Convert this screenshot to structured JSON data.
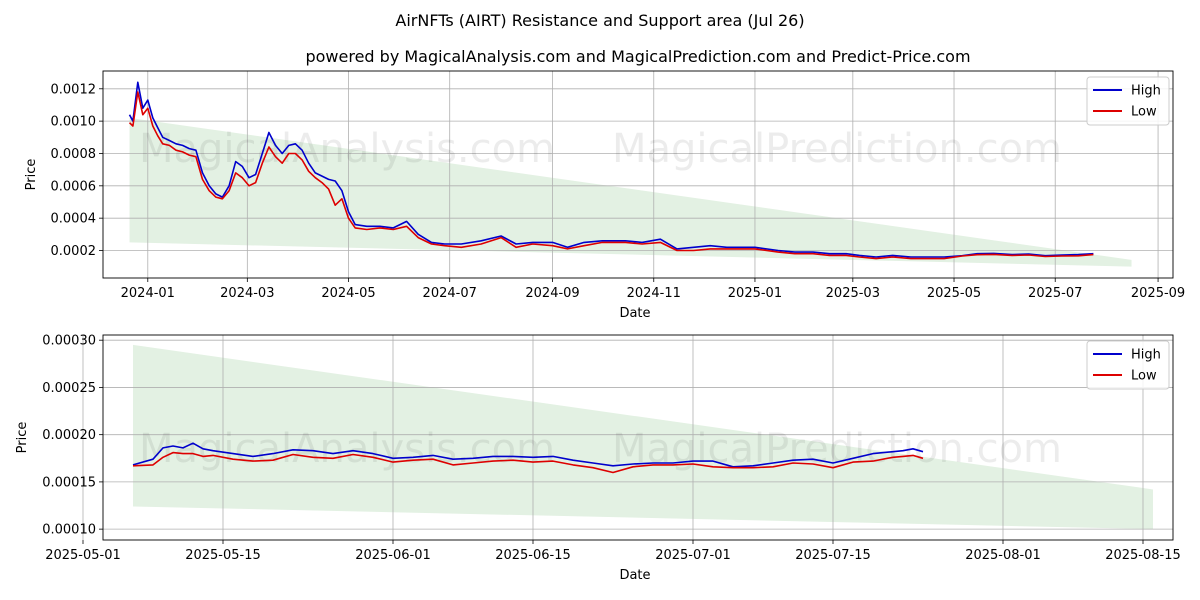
{
  "title": "AirNFTs (AIRT) Resistance and Support area (Jul 26)",
  "subtitle": "powered by MagicalAnalysis.com and MagicalPrediction.com and Predict-Price.com",
  "watermarks": [
    "MagicalAnalysis.com",
    "MagicalPrediction.com"
  ],
  "colors": {
    "high": "#0000cc",
    "low": "#dd0000",
    "band": "#e3f1e3",
    "grid": "#b0b0b0"
  },
  "chart_data": [
    {
      "type": "line",
      "xlabel": "Date",
      "ylabel": "Price",
      "grid": true,
      "legend": "top-right",
      "xlim": [
        "2023-12-05",
        "2025-09-10"
      ],
      "ylim": [
        3e-05,
        0.00131
      ],
      "xticks": [
        "2024-01",
        "2024-03",
        "2024-05",
        "2024-07",
        "2024-09",
        "2024-11",
        "2025-01",
        "2025-03",
        "2025-05",
        "2025-07",
        "2025-09"
      ],
      "xtick_labels": [
        "2024-01",
        "2024-03",
        "2024-05",
        "2024-07",
        "2024-09",
        "2024-11",
        "2025-01",
        "2025-03",
        "2025-05",
        "2025-07",
        "2025-09"
      ],
      "yticks": [
        0.0002,
        0.0004,
        0.0006,
        0.0008,
        0.001,
        0.0012
      ],
      "ytick_labels": [
        "0.0002",
        "0.0004",
        "0.0006",
        "0.0008",
        "0.0010",
        "0.0012"
      ],
      "band": {
        "x": [
          "2023-12-21",
          "2025-08-16"
        ],
        "upper": [
          0.00102,
          0.000142
        ],
        "lower": [
          0.00025,
          0.0001
        ]
      },
      "series": [
        {
          "name": "High",
          "x": [
            "2023-12-21",
            "2023-12-23",
            "2023-12-26",
            "2023-12-29",
            "2024-01-01",
            "2024-01-04",
            "2024-01-07",
            "2024-01-10",
            "2024-01-14",
            "2024-01-18",
            "2024-01-22",
            "2024-01-26",
            "2024-01-30",
            "2024-02-03",
            "2024-02-07",
            "2024-02-11",
            "2024-02-15",
            "2024-02-19",
            "2024-02-23",
            "2024-02-27",
            "2024-03-02",
            "2024-03-06",
            "2024-03-10",
            "2024-03-14",
            "2024-03-18",
            "2024-03-22",
            "2024-03-26",
            "2024-03-30",
            "2024-04-03",
            "2024-04-07",
            "2024-04-11",
            "2024-04-15",
            "2024-04-19",
            "2024-04-23",
            "2024-04-27",
            "2024-05-01",
            "2024-05-05",
            "2024-05-12",
            "2024-05-20",
            "2024-05-28",
            "2024-06-05",
            "2024-06-12",
            "2024-06-20",
            "2024-06-28",
            "2024-07-08",
            "2024-07-20",
            "2024-08-01",
            "2024-08-10",
            "2024-08-20",
            "2024-09-01",
            "2024-09-10",
            "2024-09-20",
            "2024-10-01",
            "2024-10-15",
            "2024-10-25",
            "2024-11-05",
            "2024-11-15",
            "2024-11-25",
            "2024-12-05",
            "2024-12-15",
            "2025-01-01",
            "2025-01-15",
            "2025-01-25",
            "2025-02-05",
            "2025-02-15",
            "2025-02-25",
            "2025-03-05",
            "2025-03-15",
            "2025-03-25",
            "2025-04-05",
            "2025-04-15",
            "2025-04-25",
            "2025-05-06",
            "2025-05-15",
            "2025-05-25",
            "2025-06-05",
            "2025-06-15",
            "2025-06-25",
            "2025-07-05",
            "2025-07-15",
            "2025-07-24"
          ],
          "values": [
            0.00104,
            0.001,
            0.00124,
            0.00108,
            0.00113,
            0.00102,
            0.00096,
            0.0009,
            0.00088,
            0.00086,
            0.00085,
            0.00083,
            0.00082,
            0.00068,
            0.0006,
            0.00055,
            0.00053,
            0.0006,
            0.00075,
            0.00072,
            0.00065,
            0.00067,
            0.0008,
            0.00093,
            0.00085,
            0.0008,
            0.00085,
            0.00086,
            0.00082,
            0.00074,
            0.00068,
            0.00066,
            0.00064,
            0.00063,
            0.00057,
            0.00044,
            0.00036,
            0.00035,
            0.00035,
            0.00034,
            0.00038,
            0.0003,
            0.00025,
            0.00024,
            0.00024,
            0.00026,
            0.00029,
            0.00024,
            0.00025,
            0.00025,
            0.00022,
            0.00025,
            0.00026,
            0.00026,
            0.00025,
            0.00027,
            0.00021,
            0.00022,
            0.00023,
            0.00022,
            0.00022,
            0.0002,
            0.00019,
            0.00019,
            0.00018,
            0.00018,
            0.00017,
            0.00016,
            0.00017,
            0.00016,
            0.00016,
            0.00016,
            0.000168,
            0.00018,
            0.000182,
            0.000175,
            0.000178,
            0.000168,
            0.000172,
            0.000175,
            0.00018
          ]
        },
        {
          "name": "Low",
          "x": [
            "2023-12-21",
            "2023-12-23",
            "2023-12-26",
            "2023-12-29",
            "2024-01-01",
            "2024-01-04",
            "2024-01-07",
            "2024-01-10",
            "2024-01-14",
            "2024-01-18",
            "2024-01-22",
            "2024-01-26",
            "2024-01-30",
            "2024-02-03",
            "2024-02-07",
            "2024-02-11",
            "2024-02-15",
            "2024-02-19",
            "2024-02-23",
            "2024-02-27",
            "2024-03-02",
            "2024-03-06",
            "2024-03-10",
            "2024-03-14",
            "2024-03-18",
            "2024-03-22",
            "2024-03-26",
            "2024-03-30",
            "2024-04-03",
            "2024-04-07",
            "2024-04-11",
            "2024-04-15",
            "2024-04-19",
            "2024-04-23",
            "2024-04-27",
            "2024-05-01",
            "2024-05-05",
            "2024-05-12",
            "2024-05-20",
            "2024-05-28",
            "2024-06-05",
            "2024-06-12",
            "2024-06-20",
            "2024-06-28",
            "2024-07-08",
            "2024-07-20",
            "2024-08-01",
            "2024-08-10",
            "2024-08-20",
            "2024-09-01",
            "2024-09-10",
            "2024-09-20",
            "2024-10-01",
            "2024-10-15",
            "2024-10-25",
            "2024-11-05",
            "2024-11-15",
            "2024-11-25",
            "2024-12-05",
            "2024-12-15",
            "2025-01-01",
            "2025-01-15",
            "2025-01-25",
            "2025-02-05",
            "2025-02-15",
            "2025-02-25",
            "2025-03-05",
            "2025-03-15",
            "2025-03-25",
            "2025-04-05",
            "2025-04-15",
            "2025-04-25",
            "2025-05-06",
            "2025-05-15",
            "2025-05-25",
            "2025-06-05",
            "2025-06-15",
            "2025-06-25",
            "2025-07-05",
            "2025-07-15",
            "2025-07-24"
          ],
          "values": [
            0.00099,
            0.00097,
            0.00118,
            0.00104,
            0.00108,
            0.00097,
            0.00091,
            0.00086,
            0.00085,
            0.00082,
            0.00081,
            0.00079,
            0.00078,
            0.00064,
            0.00057,
            0.00053,
            0.00052,
            0.00057,
            0.00068,
            0.00065,
            0.0006,
            0.00062,
            0.00074,
            0.00084,
            0.00078,
            0.00074,
            0.0008,
            0.0008,
            0.00076,
            0.00069,
            0.00065,
            0.00062,
            0.00058,
            0.00048,
            0.00052,
            0.0004,
            0.00034,
            0.00033,
            0.00034,
            0.00033,
            0.00035,
            0.00028,
            0.00024,
            0.00023,
            0.00022,
            0.00024,
            0.00028,
            0.00022,
            0.00024,
            0.00023,
            0.00021,
            0.00023,
            0.00025,
            0.00025,
            0.00024,
            0.00025,
            0.0002,
            0.0002,
            0.00021,
            0.00021,
            0.00021,
            0.00019,
            0.00018,
            0.00018,
            0.00017,
            0.00017,
            0.00016,
            0.00015,
            0.00016,
            0.00015,
            0.00015,
            0.00015,
            0.000166,
            0.000174,
            0.000176,
            0.00017,
            0.000172,
            0.000163,
            0.000166,
            0.000167,
            0.000175
          ]
        }
      ]
    },
    {
      "type": "line",
      "xlabel": "Date",
      "ylabel": "Price",
      "grid": true,
      "legend": "top-right",
      "xlim": [
        "2025-05-03",
        "2025-08-18"
      ],
      "ylim": [
        8.85e-05,
        0.0003055
      ],
      "xticks": [
        "2025-05-01",
        "2025-05-15",
        "2025-06-01",
        "2025-06-15",
        "2025-07-01",
        "2025-07-15",
        "2025-08-01",
        "2025-08-15"
      ],
      "xtick_labels": [
        "2025-05-01",
        "2025-05-15",
        "2025-06-01",
        "2025-06-15",
        "2025-07-01",
        "2025-07-15",
        "2025-08-01",
        "2025-08-15"
      ],
      "yticks": [
        0.0001,
        0.00015,
        0.0002,
        0.00025,
        0.0003
      ],
      "ytick_labels": [
        "0.00010",
        "0.00015",
        "0.00020",
        "0.00025",
        "0.00030"
      ],
      "band": {
        "x": [
          "2025-05-06",
          "2025-08-16"
        ],
        "upper": [
          0.000295,
          0.000142
        ],
        "lower": [
          0.000124,
          0.0001
        ]
      },
      "series": [
        {
          "name": "High",
          "x": [
            "2025-05-06",
            "2025-05-08",
            "2025-05-09",
            "2025-05-10",
            "2025-05-11",
            "2025-05-12",
            "2025-05-13",
            "2025-05-14",
            "2025-05-16",
            "2025-05-18",
            "2025-05-20",
            "2025-05-22",
            "2025-05-24",
            "2025-05-26",
            "2025-05-28",
            "2025-05-30",
            "2025-06-01",
            "2025-06-03",
            "2025-06-05",
            "2025-06-07",
            "2025-06-09",
            "2025-06-11",
            "2025-06-13",
            "2025-06-15",
            "2025-06-17",
            "2025-06-19",
            "2025-06-21",
            "2025-06-23",
            "2025-06-25",
            "2025-06-27",
            "2025-06-29",
            "2025-07-01",
            "2025-07-03",
            "2025-07-05",
            "2025-07-07",
            "2025-07-09",
            "2025-07-11",
            "2025-07-13",
            "2025-07-15",
            "2025-07-17",
            "2025-07-19",
            "2025-07-21",
            "2025-07-22",
            "2025-07-23",
            "2025-07-24"
          ],
          "values": [
            0.000168,
            0.000174,
            0.000186,
            0.000188,
            0.000186,
            0.000191,
            0.000185,
            0.000183,
            0.00018,
            0.000177,
            0.00018,
            0.000184,
            0.000183,
            0.00018,
            0.000183,
            0.00018,
            0.000175,
            0.000176,
            0.000178,
            0.000174,
            0.000175,
            0.000177,
            0.000177,
            0.000176,
            0.000177,
            0.000173,
            0.00017,
            0.000167,
            0.000169,
            0.00017,
            0.00017,
            0.000172,
            0.000172,
            0.000166,
            0.000167,
            0.00017,
            0.000173,
            0.000174,
            0.00017,
            0.000175,
            0.00018,
            0.000182,
            0.000183,
            0.000185,
            0.000182
          ]
        },
        {
          "name": "Low",
          "x": [
            "2025-05-06",
            "2025-05-08",
            "2025-05-09",
            "2025-05-10",
            "2025-05-11",
            "2025-05-12",
            "2025-05-13",
            "2025-05-14",
            "2025-05-16",
            "2025-05-18",
            "2025-05-20",
            "2025-05-22",
            "2025-05-24",
            "2025-05-26",
            "2025-05-28",
            "2025-05-30",
            "2025-06-01",
            "2025-06-03",
            "2025-06-05",
            "2025-06-07",
            "2025-06-09",
            "2025-06-11",
            "2025-06-13",
            "2025-06-15",
            "2025-06-17",
            "2025-06-19",
            "2025-06-21",
            "2025-06-23",
            "2025-06-25",
            "2025-06-27",
            "2025-06-29",
            "2025-07-01",
            "2025-07-03",
            "2025-07-05",
            "2025-07-07",
            "2025-07-09",
            "2025-07-11",
            "2025-07-13",
            "2025-07-15",
            "2025-07-17",
            "2025-07-19",
            "2025-07-21",
            "2025-07-22",
            "2025-07-23",
            "2025-07-24"
          ],
          "values": [
            0.000167,
            0.000168,
            0.000176,
            0.000181,
            0.00018,
            0.00018,
            0.000177,
            0.000178,
            0.000174,
            0.000172,
            0.000173,
            0.000179,
            0.000176,
            0.000175,
            0.000179,
            0.000176,
            0.000171,
            0.000173,
            0.000174,
            0.000168,
            0.00017,
            0.000172,
            0.000173,
            0.000171,
            0.000172,
            0.000168,
            0.000165,
            0.00016,
            0.000166,
            0.000168,
            0.000168,
            0.000169,
            0.000166,
            0.000165,
            0.000165,
            0.000166,
            0.00017,
            0.000169,
            0.000165,
            0.000171,
            0.000172,
            0.000176,
            0.000177,
            0.000178,
            0.000175
          ]
        }
      ]
    }
  ]
}
